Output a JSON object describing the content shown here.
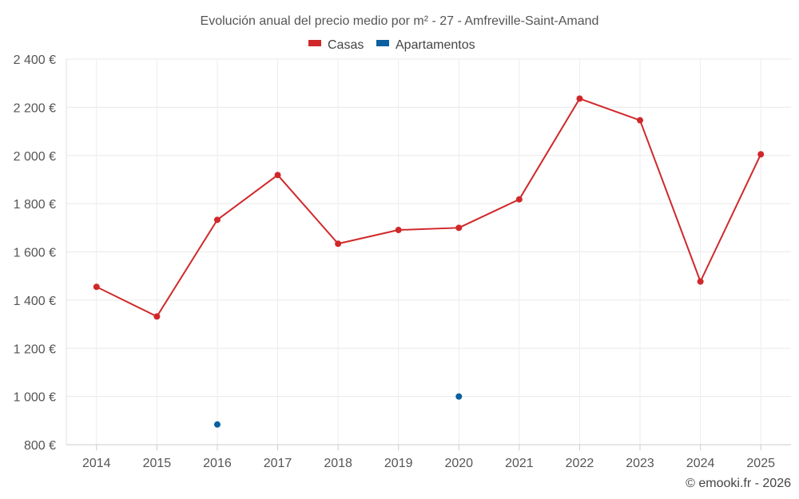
{
  "chart_data": {
    "type": "line",
    "title": "Evolución anual del precio medio por m² - 27 - Amfreville-Saint-Amand",
    "categories": [
      "2014",
      "2015",
      "2016",
      "2017",
      "2018",
      "2019",
      "2020",
      "2021",
      "2022",
      "2023",
      "2024",
      "2025"
    ],
    "ylim": [
      800,
      2400
    ],
    "yticks": [
      800,
      1000,
      1200,
      1400,
      1600,
      1800,
      2000,
      2200,
      2400
    ],
    "ytick_labels": [
      "800 €",
      "1 000 €",
      "1 200 €",
      "1 400 €",
      "1 600 €",
      "1 800 €",
      "2 000 €",
      "2 200 €",
      "2 400 €"
    ],
    "grid": true,
    "legend_position": "top-center",
    "series": [
      {
        "name": "Casas",
        "color": "#d0282a",
        "style": "line-markers",
        "values": [
          1455,
          1332,
          1733,
          1919,
          1634,
          1691,
          1700,
          1818,
          2236,
          2146,
          1477,
          2005
        ]
      },
      {
        "name": "Apartamentos",
        "color": "#0a5fa0",
        "style": "markers",
        "values": [
          null,
          null,
          884,
          null,
          null,
          null,
          1000,
          null,
          null,
          null,
          null,
          null
        ]
      }
    ]
  },
  "credit": "© emooki.fr - 2026"
}
